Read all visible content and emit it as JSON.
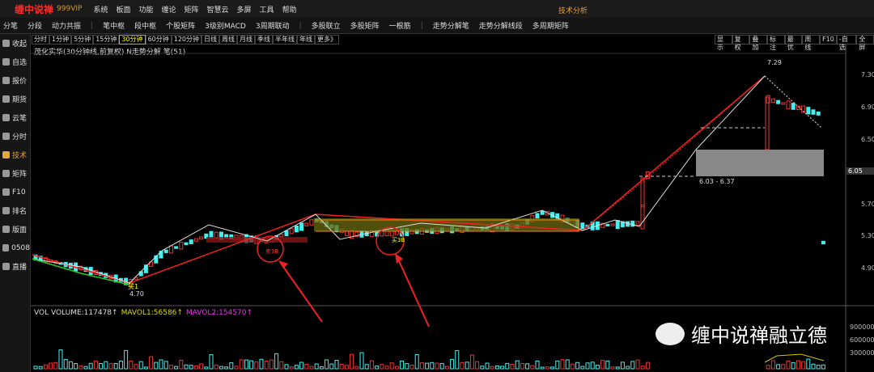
{
  "title_bar": {
    "logo": "缠中说禅",
    "edition": "999VIP",
    "menu": [
      "系统",
      "板面",
      "功能",
      "缠论",
      "矩阵",
      "智慧云",
      "多屏",
      "工具",
      "帮助"
    ],
    "window_title": "技术分析"
  },
  "toolbar": [
    [
      "分笔",
      "分段",
      "动力共振"
    ],
    [
      "笔中枢",
      "段中枢",
      "个股矩阵",
      "3级别MACD",
      "3周期联动"
    ],
    [
      "多股联立",
      "多股矩阵",
      "一根筋"
    ],
    [
      "走势分解笔",
      "走势分解线段",
      "多周期矩阵"
    ]
  ],
  "sidebar": [
    "收起",
    "自选",
    "报价",
    "期货",
    "云笔",
    "分时",
    "技术",
    "矩阵",
    "F10",
    "排名",
    "版面",
    "0508",
    "直播"
  ],
  "periods": [
    "分时",
    "1分钟",
    "5分钟",
    "15分钟",
    "30分钟",
    "60分钟",
    "120分钟",
    "日线",
    "周线",
    "月线",
    "季线",
    "半年线",
    "年线",
    "更多》"
  ],
  "right_buttons": [
    "显示",
    "复权",
    "叠加",
    "标注",
    "最优",
    "周线",
    "F10",
    "-自选",
    "全屏"
  ],
  "chart": {
    "info": "茂化实华(30分钟线,前复权) N走势分解 笔(51)",
    "price_axis": [
      "7.30",
      "6.90",
      "6.50",
      "6.05",
      "5.70",
      "5.30",
      "4.90"
    ],
    "annotations": {
      "high": "7.29",
      "low": "4.70",
      "zone": "6.03 - 6.37",
      "buy1": "买1",
      "sell3b": "卖3B",
      "buy3b": "买3B"
    }
  },
  "volume": {
    "legend": [
      "VOL VOLUME:117478↑",
      "MAVOL1:56586↑",
      "MAVOL2:154570↑"
    ],
    "axis": [
      "900000",
      "600000",
      "300000"
    ]
  },
  "watermark": "缠中说禅融立德"
}
